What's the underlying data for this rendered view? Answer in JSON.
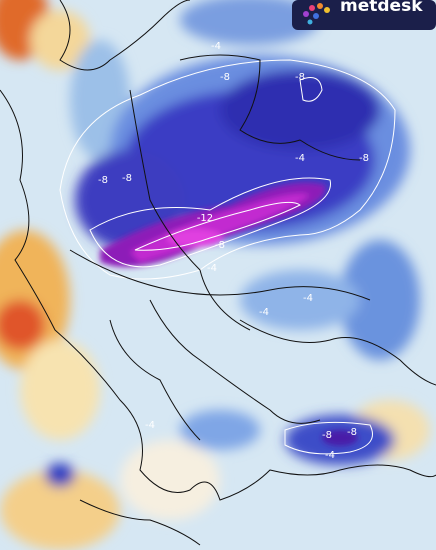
{
  "logo": {
    "text": "metdesk"
  },
  "contour_labels": [
    "-4",
    "-8",
    "-8",
    "-8",
    "-4",
    "-8",
    "-8",
    "-12",
    "-8",
    "-4",
    "-4",
    "-4",
    "-8",
    "-8",
    "-4",
    "-4"
  ]
}
